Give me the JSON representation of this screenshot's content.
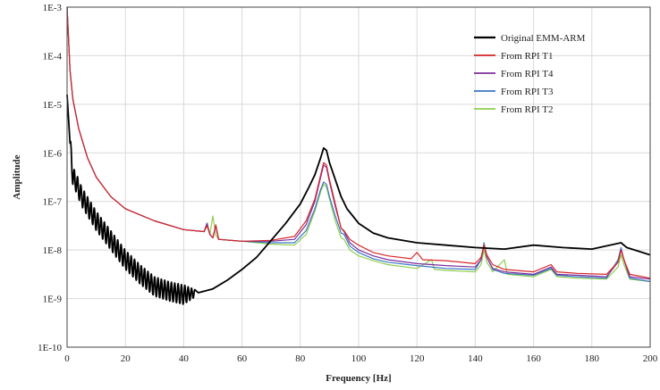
{
  "chart_data": {
    "type": "line",
    "title": "",
    "xlabel": "Frequency [Hz]",
    "ylabel": "Amplitude",
    "xlim": [
      0,
      200
    ],
    "ylim_log10": [
      -10,
      -3
    ],
    "yscale": "log",
    "grid": true,
    "legend_position": "top-right",
    "x_ticks": [
      "0",
      "20",
      "40",
      "60",
      "80",
      "100",
      "120",
      "140",
      "160",
      "180",
      "200"
    ],
    "y_ticks": [
      "1E-10",
      "1E-9",
      "1E-8",
      "1E-7",
      "1E-6",
      "1E-5",
      "1E-4",
      "1E-3"
    ],
    "series": [
      {
        "name": "Original EMM-ARM",
        "color": "#000000",
        "points": [
          [
            0,
            -4.8
          ],
          [
            1,
            -5.8
          ],
          [
            2,
            -6.5
          ],
          [
            3,
            -6.6
          ],
          [
            5,
            -6.9
          ],
          [
            8,
            -7.2
          ],
          [
            10,
            -7.4
          ],
          [
            15,
            -7.8
          ],
          [
            20,
            -8.2
          ],
          [
            25,
            -8.5
          ],
          [
            30,
            -8.75
          ],
          [
            35,
            -8.85
          ],
          [
            40,
            -8.92
          ],
          [
            45,
            -8.88
          ],
          [
            50,
            -8.8
          ],
          [
            55,
            -8.62
          ],
          [
            60,
            -8.4
          ],
          [
            65,
            -8.15
          ],
          [
            70,
            -7.8
          ],
          [
            75,
            -7.45
          ],
          [
            80,
            -7.05
          ],
          [
            83,
            -6.7
          ],
          [
            85,
            -6.45
          ],
          [
            87,
            -6.1
          ],
          [
            88,
            -5.9
          ],
          [
            89,
            -5.95
          ],
          [
            90,
            -6.2
          ],
          [
            92,
            -6.55
          ],
          [
            94,
            -6.9
          ],
          [
            96,
            -7.15
          ],
          [
            98,
            -7.3
          ],
          [
            100,
            -7.45
          ],
          [
            105,
            -7.65
          ],
          [
            110,
            -7.75
          ],
          [
            120,
            -7.85
          ],
          [
            130,
            -7.9
          ],
          [
            140,
            -7.95
          ],
          [
            150,
            -7.98
          ],
          [
            160,
            -7.9
          ],
          [
            170,
            -7.95
          ],
          [
            180,
            -7.98
          ],
          [
            190,
            -7.85
          ],
          [
            192,
            -7.95
          ],
          [
            200,
            -8.1
          ]
        ],
        "oscillation": {
          "from": 1,
          "to": 44,
          "period": 1.15,
          "amplitude": 0.2
        }
      },
      {
        "name": "From RPI T1",
        "color": "#d62728",
        "points": [
          [
            0,
            -3
          ],
          [
            1,
            -4.3
          ],
          [
            2,
            -4.9
          ],
          [
            4,
            -5.5
          ],
          [
            7,
            -6.1
          ],
          [
            10,
            -6.5
          ],
          [
            15,
            -6.9
          ],
          [
            20,
            -7.15
          ],
          [
            30,
            -7.4
          ],
          [
            40,
            -7.58
          ],
          [
            47,
            -7.62
          ],
          [
            48,
            -7.5
          ],
          [
            49,
            -7.68
          ],
          [
            50,
            -7.75
          ],
          [
            51,
            -7.48
          ],
          [
            52,
            -7.78
          ],
          [
            60,
            -7.82
          ],
          [
            70,
            -7.8
          ],
          [
            78,
            -7.72
          ],
          [
            82,
            -7.4
          ],
          [
            85,
            -6.95
          ],
          [
            87,
            -6.45
          ],
          [
            88,
            -6.2
          ],
          [
            89,
            -6.25
          ],
          [
            90,
            -6.55
          ],
          [
            92,
            -7.05
          ],
          [
            94,
            -7.55
          ],
          [
            95,
            -7.6
          ],
          [
            97,
            -7.78
          ],
          [
            100,
            -7.9
          ],
          [
            105,
            -8.05
          ],
          [
            110,
            -8.12
          ],
          [
            118,
            -8.18
          ],
          [
            120,
            -8.05
          ],
          [
            122,
            -8.2
          ],
          [
            130,
            -8.22
          ],
          [
            140,
            -8.28
          ],
          [
            142,
            -8.15
          ],
          [
            143,
            -7.9
          ],
          [
            144,
            -8.1
          ],
          [
            146,
            -8.3
          ],
          [
            150,
            -8.4
          ],
          [
            160,
            -8.45
          ],
          [
            166,
            -8.3
          ],
          [
            168,
            -8.45
          ],
          [
            175,
            -8.48
          ],
          [
            185,
            -8.5
          ],
          [
            189,
            -8.25
          ],
          [
            190,
            -8.0
          ],
          [
            191,
            -8.2
          ],
          [
            193,
            -8.5
          ],
          [
            200,
            -8.58
          ]
        ]
      },
      {
        "name": "From RPI T4",
        "color": "#7b2f9e",
        "points": [
          [
            0,
            -3
          ],
          [
            1,
            -4.3
          ],
          [
            2,
            -4.9
          ],
          [
            4,
            -5.5
          ],
          [
            7,
            -6.1
          ],
          [
            10,
            -6.5
          ],
          [
            15,
            -6.9
          ],
          [
            20,
            -7.15
          ],
          [
            30,
            -7.4
          ],
          [
            40,
            -7.58
          ],
          [
            47,
            -7.62
          ],
          [
            48,
            -7.45
          ],
          [
            49,
            -7.68
          ],
          [
            50,
            -7.75
          ],
          [
            51,
            -7.5
          ],
          [
            52,
            -7.78
          ],
          [
            60,
            -7.82
          ],
          [
            70,
            -7.82
          ],
          [
            78,
            -7.78
          ],
          [
            82,
            -7.48
          ],
          [
            85,
            -7.0
          ],
          [
            87,
            -6.5
          ],
          [
            88,
            -6.25
          ],
          [
            89,
            -6.3
          ],
          [
            90,
            -6.6
          ],
          [
            92,
            -7.1
          ],
          [
            94,
            -7.55
          ],
          [
            95,
            -7.62
          ],
          [
            97,
            -7.85
          ],
          [
            100,
            -8.0
          ],
          [
            105,
            -8.12
          ],
          [
            110,
            -8.2
          ],
          [
            120,
            -8.28
          ],
          [
            130,
            -8.32
          ],
          [
            140,
            -8.35
          ],
          [
            142,
            -8.2
          ],
          [
            143,
            -7.9
          ],
          [
            144,
            -8.15
          ],
          [
            146,
            -8.38
          ],
          [
            150,
            -8.45
          ],
          [
            160,
            -8.5
          ],
          [
            166,
            -8.35
          ],
          [
            168,
            -8.5
          ],
          [
            175,
            -8.52
          ],
          [
            185,
            -8.55
          ],
          [
            189,
            -8.25
          ],
          [
            190,
            -8.0
          ],
          [
            191,
            -8.2
          ],
          [
            193,
            -8.55
          ],
          [
            200,
            -8.6
          ]
        ]
      },
      {
        "name": "From RPI T3",
        "color": "#3a77c2",
        "points": [
          [
            0,
            -3
          ],
          [
            1,
            -4.3
          ],
          [
            2,
            -4.9
          ],
          [
            4,
            -5.5
          ],
          [
            7,
            -6.1
          ],
          [
            10,
            -6.5
          ],
          [
            15,
            -6.9
          ],
          [
            20,
            -7.15
          ],
          [
            30,
            -7.4
          ],
          [
            40,
            -7.58
          ],
          [
            47,
            -7.62
          ],
          [
            48,
            -7.45
          ],
          [
            49,
            -7.68
          ],
          [
            50,
            -7.75
          ],
          [
            51,
            -7.5
          ],
          [
            52,
            -7.78
          ],
          [
            60,
            -7.82
          ],
          [
            70,
            -7.85
          ],
          [
            78,
            -7.85
          ],
          [
            82,
            -7.6
          ],
          [
            85,
            -7.15
          ],
          [
            87,
            -6.75
          ],
          [
            88,
            -6.6
          ],
          [
            89,
            -6.65
          ],
          [
            90,
            -6.9
          ],
          [
            92,
            -7.3
          ],
          [
            94,
            -7.65
          ],
          [
            95,
            -7.68
          ],
          [
            97,
            -7.92
          ],
          [
            100,
            -8.05
          ],
          [
            105,
            -8.18
          ],
          [
            110,
            -8.25
          ],
          [
            120,
            -8.32
          ],
          [
            130,
            -8.38
          ],
          [
            140,
            -8.4
          ],
          [
            142,
            -8.2
          ],
          [
            143,
            -7.85
          ],
          [
            144,
            -8.15
          ],
          [
            146,
            -8.4
          ],
          [
            150,
            -8.48
          ],
          [
            160,
            -8.52
          ],
          [
            166,
            -8.38
          ],
          [
            168,
            -8.52
          ],
          [
            175,
            -8.55
          ],
          [
            185,
            -8.58
          ],
          [
            189,
            -8.2
          ],
          [
            190,
            -7.95
          ],
          [
            191,
            -8.2
          ],
          [
            193,
            -8.58
          ],
          [
            200,
            -8.65
          ]
        ]
      },
      {
        "name": "From RPI T2",
        "color": "#8fcf4f",
        "points": [
          [
            0,
            -3
          ],
          [
            1,
            -4.3
          ],
          [
            2,
            -4.9
          ],
          [
            4,
            -5.5
          ],
          [
            7,
            -6.1
          ],
          [
            10,
            -6.5
          ],
          [
            15,
            -6.9
          ],
          [
            20,
            -7.15
          ],
          [
            30,
            -7.4
          ],
          [
            40,
            -7.58
          ],
          [
            47,
            -7.62
          ],
          [
            48,
            -7.5
          ],
          [
            49,
            -7.68
          ],
          [
            50,
            -7.3
          ],
          [
            51,
            -7.7
          ],
          [
            52,
            -7.78
          ],
          [
            60,
            -7.82
          ],
          [
            70,
            -7.88
          ],
          [
            78,
            -7.9
          ],
          [
            82,
            -7.68
          ],
          [
            85,
            -7.2
          ],
          [
            87,
            -6.8
          ],
          [
            88,
            -6.65
          ],
          [
            89,
            -6.7
          ],
          [
            90,
            -6.95
          ],
          [
            92,
            -7.4
          ],
          [
            94,
            -7.75
          ],
          [
            95,
            -7.78
          ],
          [
            97,
            -8.0
          ],
          [
            100,
            -8.12
          ],
          [
            105,
            -8.22
          ],
          [
            110,
            -8.3
          ],
          [
            120,
            -8.38
          ],
          [
            125,
            -8.2
          ],
          [
            126,
            -8.4
          ],
          [
            130,
            -8.42
          ],
          [
            140,
            -8.45
          ],
          [
            142,
            -8.3
          ],
          [
            143,
            -8.0
          ],
          [
            144,
            -8.25
          ],
          [
            146,
            -8.45
          ],
          [
            150,
            -8.2
          ],
          [
            151,
            -8.5
          ],
          [
            160,
            -8.55
          ],
          [
            166,
            -8.4
          ],
          [
            168,
            -8.55
          ],
          [
            175,
            -8.58
          ],
          [
            185,
            -8.6
          ],
          [
            189,
            -8.35
          ],
          [
            190,
            -8.1
          ],
          [
            191,
            -8.3
          ],
          [
            193,
            -8.6
          ],
          [
            200,
            -8.65
          ]
        ]
      }
    ]
  }
}
